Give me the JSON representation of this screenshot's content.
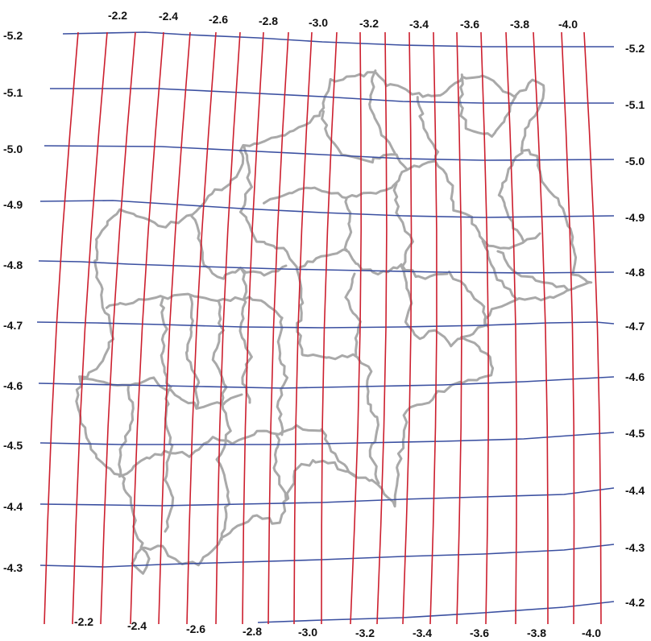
{
  "colors": {
    "latitude_lines": "#3a4fa0",
    "longitude_lines": "#cc1f2e",
    "boundaries": "#a9a9a9",
    "labels": "#111111"
  },
  "grid": {
    "latitude_left_labels": [
      "-5.2",
      "-5.1",
      "-5.0",
      "-4.9",
      "-4.8",
      "-4.7",
      "-4.6",
      "-4.5",
      "-4.4",
      "-4.3"
    ],
    "latitude_right_labels": [
      "-5.2",
      "-5.1",
      "-5.0",
      "-4.9",
      "-4.8",
      "-4.7",
      "-4.6",
      "-4.5",
      "-4.4",
      "-4.3",
      "-4.2"
    ],
    "longitude_top_labels": [
      "-2.2",
      "-2.4",
      "-2.6",
      "-2.8",
      "-3.0",
      "-3.2",
      "-3.4",
      "-3.6",
      "-3.8",
      "-4.0"
    ],
    "longitude_bottom_labels": [
      "-2.2",
      "-2.4",
      "-2.6",
      "-2.8",
      "-3.0",
      "-3.2",
      "-3.4",
      "-3.6",
      "-3.8",
      "-4.0"
    ]
  }
}
